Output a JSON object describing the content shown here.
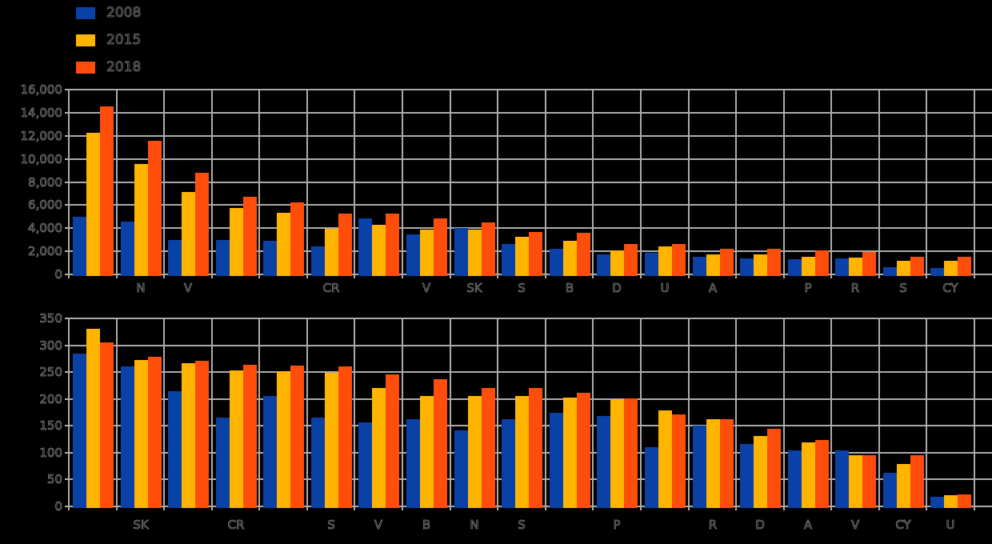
{
  "colors": {
    "background": "#000000",
    "grid": "#ABABAB",
    "text": "#7F7F7F",
    "series": [
      "#0A41A6",
      "#FFB400",
      "#FF4E0C"
    ]
  },
  "legend": {
    "items": [
      {
        "label": "2008",
        "color": "#0A41A6"
      },
      {
        "label": "2015",
        "color": "#FFB400"
      },
      {
        "label": "2018",
        "color": "#FF4E0C"
      }
    ]
  },
  "chart_data": [
    {
      "type": "bar",
      "title": "",
      "xlabel": "",
      "ylabel": "",
      "grid": true,
      "legend_position": "top-left",
      "ylim": [
        0,
        16000
      ],
      "ytick_step": 2000,
      "ytick_labels": [
        "16,000",
        "14,000",
        "12,000",
        "10,000",
        "8,000",
        "6,000",
        "4,000",
        "2,000",
        "0"
      ],
      "categories": [
        "",
        "N",
        "V",
        "",
        "",
        "CR",
        "",
        "V",
        "SK",
        "S",
        "B",
        "D",
        "U",
        "A",
        "",
        "P",
        "R",
        "S",
        "CY"
      ],
      "series": [
        {
          "name": "2008",
          "values": [
            5000,
            4600,
            2950,
            2950,
            2900,
            2400,
            4850,
            3450,
            4050,
            2600,
            2200,
            1700,
            1850,
            1550,
            1400,
            1350,
            1400,
            650,
            550
          ]
        },
        {
          "name": "2015",
          "values": [
            12250,
            9550,
            7100,
            5750,
            5300,
            3950,
            4300,
            3850,
            3850,
            3250,
            2900,
            2100,
            2450,
            1750,
            1700,
            1550,
            1450,
            1200,
            1150
          ]
        },
        {
          "name": "2018",
          "values": [
            14550,
            11600,
            8800,
            6700,
            6250,
            5250,
            5250,
            4850,
            4500,
            3650,
            3600,
            2650,
            2600,
            2200,
            2200,
            2050,
            1950,
            1500,
            1500
          ]
        }
      ]
    },
    {
      "type": "bar",
      "title": "",
      "xlabel": "",
      "ylabel": "",
      "grid": true,
      "legend_position": "top-left",
      "ylim": [
        0,
        350
      ],
      "ytick_step": 50,
      "ytick_labels": [
        "350",
        "300",
        "250",
        "200",
        "150",
        "100",
        "50",
        "0"
      ],
      "categories": [
        "",
        "SK",
        "",
        "CR",
        "",
        "S",
        "V",
        "B",
        "N",
        "S",
        "",
        "P",
        "",
        "R",
        "D",
        "A",
        "V",
        "CY",
        "U"
      ],
      "series": [
        {
          "name": "2008",
          "values": [
            285,
            260,
            215,
            166,
            206,
            166,
            156,
            162,
            141,
            163,
            174,
            168,
            110,
            150,
            116,
            104,
            104,
            62,
            18
          ]
        },
        {
          "name": "2015",
          "values": [
            330,
            273,
            266,
            253,
            251,
            248,
            221,
            205,
            205,
            205,
            203,
            200,
            178,
            162,
            131,
            119,
            96,
            79,
            21
          ]
        },
        {
          "name": "2018",
          "values": [
            305,
            278,
            271,
            264,
            262,
            260,
            245,
            237,
            220,
            220,
            212,
            201,
            172,
            163,
            145,
            123,
            96,
            95,
            22
          ]
        }
      ]
    }
  ]
}
